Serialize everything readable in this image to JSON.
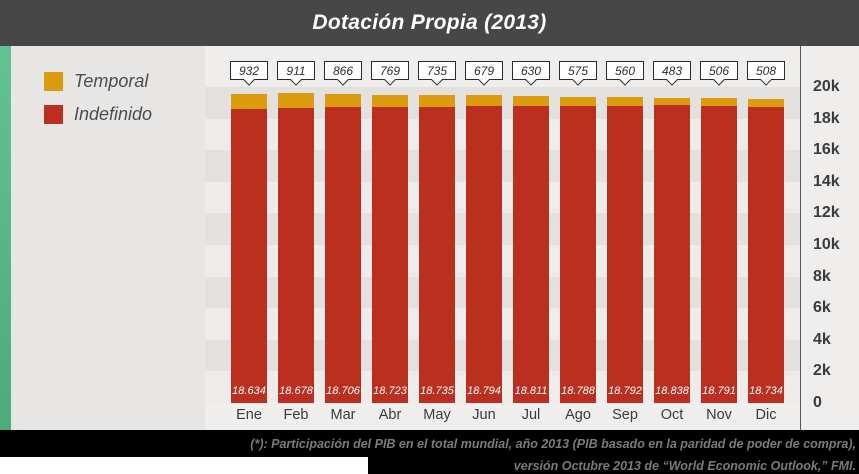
{
  "header": {
    "title": "Dotación Propia (2013)"
  },
  "legend": {
    "position": "left",
    "items": [
      {
        "label": "Temporal",
        "color": "#DC9A0D"
      },
      {
        "label": "Indefinido",
        "color": "#BA2F1F"
      }
    ]
  },
  "chart_data": {
    "type": "bar",
    "stacked": true,
    "title": "Dotación Propia (2013)",
    "categories": [
      "Ene",
      "Feb",
      "Mar",
      "Abr",
      "May",
      "Jun",
      "Jul",
      "Ago",
      "Sep",
      "Oct",
      "Nov",
      "Dic"
    ],
    "series": [
      {
        "name": "Indefinido",
        "color": "#BA2F1F",
        "values": [
          18634,
          18678,
          18706,
          18723,
          18735,
          18794,
          18811,
          18788,
          18792,
          18838,
          18791,
          18734
        ]
      },
      {
        "name": "Temporal",
        "color": "#DC9A0D",
        "values": [
          932,
          911,
          866,
          769,
          735,
          679,
          630,
          575,
          560,
          483,
          506,
          508
        ]
      }
    ],
    "bar_value_labels": [
      "18.634",
      "18.678",
      "18.706",
      "18.723",
      "18.735",
      "18.794",
      "18.811",
      "18.788",
      "18.792",
      "18.838",
      "18.791",
      "18.734"
    ],
    "callout_labels": [
      "932",
      "911",
      "866",
      "769",
      "735",
      "679",
      "630",
      "575",
      "560",
      "483",
      "506",
      "508"
    ],
    "y_axis": {
      "position": "right",
      "ylim": [
        0,
        20000
      ],
      "tick_step": 2000,
      "ticks": [
        "0",
        "2k",
        "4k",
        "6k",
        "8k",
        "10k",
        "12k",
        "14k",
        "16k",
        "18k",
        "20k"
      ]
    },
    "grid": "striped-horizontal-bands",
    "legend_position": "left"
  },
  "footer": {
    "line1": "(*): Participación del PIB en el total mundial, año 2013 (PIB basado en la paridad de poder de compra),",
    "line2": "versión Octubre 2013 de “World Economic Outlook,” FMI."
  },
  "colors": {
    "header_bg": "#474747",
    "title_text": "#FFFFFF",
    "accent_green": "#52B17F",
    "temporal_orange": "#DC9A0D",
    "indefinido_red": "#BA2F1F",
    "plot_band_dark": "#E2E1E0",
    "plot_band_light": "#EDECEB",
    "footer_bg": "#000000",
    "footer_text": "#7B7B7B"
  }
}
